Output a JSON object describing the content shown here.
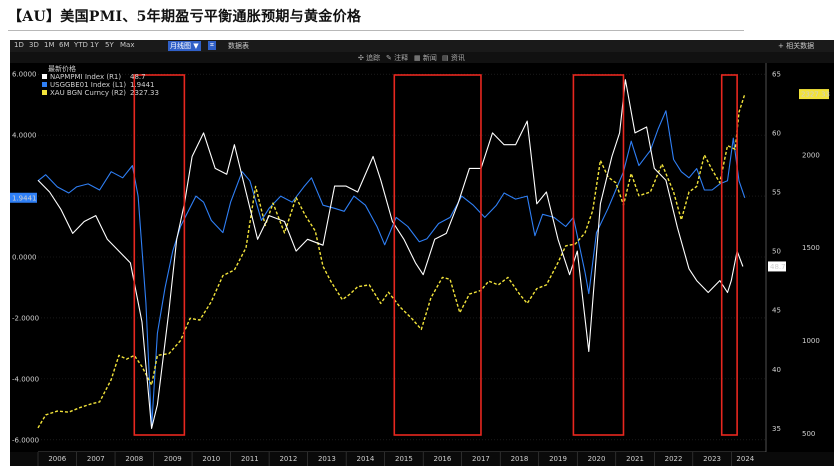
{
  "title": "【AU】美国PMI、5年期盈亏平衡通胀预期与黄金价格",
  "toolbar": {
    "ranges": [
      "1D",
      "3D",
      "1M",
      "6M",
      "YTD",
      "1Y",
      "5Y",
      "Max"
    ],
    "chart_type": "月线图 ▼",
    "table_label": "数据表",
    "right_action": "+ 相关数据",
    "secondary": [
      "✣ 追踪",
      "✎ 注释",
      "▦ 新闻",
      "▤ 资讯"
    ]
  },
  "legend": {
    "header": "最新价格",
    "items": [
      {
        "name": "NAPMPMI Index (R1)",
        "value": "48.7",
        "color": "#ffffff"
      },
      {
        "name": "USGGBE01 Index (L1)",
        "value": "1.9441",
        "color": "#2f7ff5"
      },
      {
        "name": "XAU BGN Curncy (R2)",
        "value": "2327.33",
        "color": "#f2e33a"
      }
    ]
  },
  "colors": {
    "pmi": "#ffffff",
    "breakeven": "#2f7ff5",
    "gold": "#f2e33a",
    "box": "#e8271f"
  },
  "chart_data": {
    "type": "line",
    "x_years": [
      "2006",
      "2007",
      "2008",
      "2009",
      "2010",
      "2011",
      "2012",
      "2013",
      "2014",
      "2015",
      "2016",
      "2017",
      "2018",
      "2019",
      "2020",
      "2021",
      "2022",
      "2023",
      "2024"
    ],
    "left_axis": {
      "ticks": [
        "6.0000",
        "4.0000",
        "2.0000",
        "0.0000",
        "-2.0000",
        "-4.0000",
        "-6.0000"
      ],
      "range": [
        -6.4,
        6.4
      ]
    },
    "right1_axis": {
      "ticks": [
        "65",
        "60",
        "55",
        "50",
        "45",
        "40",
        "35"
      ],
      "range": [
        33,
        66
      ]
    },
    "right2_axis": {
      "ticks": [
        "2000",
        "1500",
        "1000",
        "500"
      ],
      "range": [
        400,
        2500
      ]
    },
    "current_labels": {
      "breakeven": "1.9441",
      "pmi": "48.7",
      "gold": "2327.33"
    },
    "series": [
      {
        "name": "NAPMPMI Index (R1)",
        "axis": "r1",
        "points": [
          [
            2006.0,
            56
          ],
          [
            2006.3,
            55
          ],
          [
            2006.6,
            53.5
          ],
          [
            2006.9,
            51.5
          ],
          [
            2007.2,
            52.5
          ],
          [
            2007.5,
            53
          ],
          [
            2007.8,
            51
          ],
          [
            2008.1,
            50
          ],
          [
            2008.4,
            49
          ],
          [
            2008.7,
            44
          ],
          [
            2008.95,
            35
          ],
          [
            2009.1,
            37
          ],
          [
            2009.4,
            45
          ],
          [
            2009.6,
            51
          ],
          [
            2009.8,
            54
          ],
          [
            2010.0,
            58
          ],
          [
            2010.3,
            60
          ],
          [
            2010.6,
            57
          ],
          [
            2010.9,
            56.5
          ],
          [
            2011.1,
            59
          ],
          [
            2011.4,
            55
          ],
          [
            2011.7,
            51
          ],
          [
            2012.0,
            53
          ],
          [
            2012.4,
            52.5
          ],
          [
            2012.7,
            50
          ],
          [
            2013.0,
            51
          ],
          [
            2013.4,
            50.5
          ],
          [
            2013.7,
            55.5
          ],
          [
            2014.0,
            55.5
          ],
          [
            2014.3,
            55
          ],
          [
            2014.7,
            58
          ],
          [
            2014.9,
            56
          ],
          [
            2015.2,
            52.5
          ],
          [
            2015.5,
            51
          ],
          [
            2015.8,
            49
          ],
          [
            2016.0,
            48
          ],
          [
            2016.3,
            51
          ],
          [
            2016.6,
            51.5
          ],
          [
            2016.9,
            54
          ],
          [
            2017.2,
            57
          ],
          [
            2017.5,
            57
          ],
          [
            2017.8,
            60
          ],
          [
            2018.1,
            59
          ],
          [
            2018.4,
            59
          ],
          [
            2018.7,
            61
          ],
          [
            2018.95,
            54
          ],
          [
            2019.2,
            55
          ],
          [
            2019.5,
            51
          ],
          [
            2019.8,
            48
          ],
          [
            2020.0,
            50
          ],
          [
            2020.3,
            41.5
          ],
          [
            2020.6,
            54
          ],
          [
            2020.9,
            58
          ],
          [
            2021.1,
            60
          ],
          [
            2021.25,
            64.5
          ],
          [
            2021.5,
            60
          ],
          [
            2021.8,
            60.5
          ],
          [
            2022.0,
            57
          ],
          [
            2022.3,
            56
          ],
          [
            2022.6,
            52
          ],
          [
            2022.9,
            48.5
          ],
          [
            2023.1,
            47.5
          ],
          [
            2023.4,
            46.5
          ],
          [
            2023.7,
            47.5
          ],
          [
            2023.9,
            46.5
          ],
          [
            2024.0,
            47.5
          ],
          [
            2024.15,
            50
          ],
          [
            2024.3,
            48.7
          ]
        ]
      },
      {
        "name": "USGGBE01 Index (L1)",
        "axis": "l1",
        "points": [
          [
            2006.0,
            2.5
          ],
          [
            2006.2,
            2.7
          ],
          [
            2006.5,
            2.3
          ],
          [
            2006.8,
            2.1
          ],
          [
            2007.0,
            2.3
          ],
          [
            2007.3,
            2.4
          ],
          [
            2007.6,
            2.2
          ],
          [
            2007.9,
            2.8
          ],
          [
            2008.2,
            2.6
          ],
          [
            2008.45,
            3.0
          ],
          [
            2008.6,
            2.0
          ],
          [
            2008.8,
            -1.5
          ],
          [
            2008.95,
            -5.6
          ],
          [
            2009.1,
            -2.5
          ],
          [
            2009.3,
            -1.0
          ],
          [
            2009.5,
            0.2
          ],
          [
            2009.7,
            1.0
          ],
          [
            2009.9,
            1.5
          ],
          [
            2010.1,
            2.0
          ],
          [
            2010.3,
            1.8
          ],
          [
            2010.5,
            1.2
          ],
          [
            2010.8,
            0.8
          ],
          [
            2011.0,
            1.8
          ],
          [
            2011.3,
            2.8
          ],
          [
            2011.5,
            2.5
          ],
          [
            2011.8,
            1.2
          ],
          [
            2012.0,
            1.6
          ],
          [
            2012.3,
            2.0
          ],
          [
            2012.6,
            1.8
          ],
          [
            2012.9,
            2.3
          ],
          [
            2013.1,
            2.6
          ],
          [
            2013.4,
            1.7
          ],
          [
            2013.7,
            1.6
          ],
          [
            2013.95,
            1.5
          ],
          [
            2014.2,
            2.0
          ],
          [
            2014.5,
            1.7
          ],
          [
            2014.8,
            1.0
          ],
          [
            2015.0,
            0.4
          ],
          [
            2015.3,
            1.3
          ],
          [
            2015.6,
            1.0
          ],
          [
            2015.9,
            0.5
          ],
          [
            2016.1,
            0.6
          ],
          [
            2016.4,
            1.1
          ],
          [
            2016.7,
            1.3
          ],
          [
            2017.0,
            2.0
          ],
          [
            2017.3,
            1.7
          ],
          [
            2017.6,
            1.3
          ],
          [
            2017.9,
            1.7
          ],
          [
            2018.1,
            2.1
          ],
          [
            2018.4,
            1.9
          ],
          [
            2018.7,
            2.0
          ],
          [
            2018.9,
            0.7
          ],
          [
            2019.1,
            1.4
          ],
          [
            2019.4,
            1.3
          ],
          [
            2019.7,
            1.0
          ],
          [
            2019.9,
            1.3
          ],
          [
            2020.2,
            -0.5
          ],
          [
            2020.3,
            -1.2
          ],
          [
            2020.5,
            0.8
          ],
          [
            2020.8,
            1.6
          ],
          [
            2021.0,
            2.2
          ],
          [
            2021.2,
            2.8
          ],
          [
            2021.4,
            3.8
          ],
          [
            2021.6,
            3.0
          ],
          [
            2021.9,
            3.5
          ],
          [
            2022.1,
            4.2
          ],
          [
            2022.3,
            4.8
          ],
          [
            2022.5,
            3.2
          ],
          [
            2022.7,
            2.8
          ],
          [
            2022.9,
            2.6
          ],
          [
            2023.1,
            2.9
          ],
          [
            2023.3,
            2.2
          ],
          [
            2023.5,
            2.2
          ],
          [
            2023.7,
            2.4
          ],
          [
            2023.9,
            2.5
          ],
          [
            2024.05,
            3.9
          ],
          [
            2024.2,
            2.5
          ],
          [
            2024.35,
            1.9441
          ]
        ]
      },
      {
        "name": "XAU BGN Curncy (R2)",
        "axis": "r2",
        "points": [
          [
            2006.0,
            530
          ],
          [
            2006.2,
            600
          ],
          [
            2006.5,
            620
          ],
          [
            2006.8,
            615
          ],
          [
            2007.1,
            640
          ],
          [
            2007.4,
            660
          ],
          [
            2007.6,
            670
          ],
          [
            2007.9,
            790
          ],
          [
            2008.1,
            920
          ],
          [
            2008.3,
            900
          ],
          [
            2008.5,
            920
          ],
          [
            2008.7,
            860
          ],
          [
            2008.95,
            760
          ],
          [
            2009.1,
            920
          ],
          [
            2009.4,
            930
          ],
          [
            2009.7,
            1000
          ],
          [
            2009.95,
            1120
          ],
          [
            2010.2,
            1110
          ],
          [
            2010.5,
            1210
          ],
          [
            2010.8,
            1350
          ],
          [
            2011.1,
            1380
          ],
          [
            2011.4,
            1500
          ],
          [
            2011.65,
            1830
          ],
          [
            2011.9,
            1620
          ],
          [
            2012.1,
            1740
          ],
          [
            2012.4,
            1580
          ],
          [
            2012.7,
            1770
          ],
          [
            2012.95,
            1670
          ],
          [
            2013.2,
            1590
          ],
          [
            2013.4,
            1400
          ],
          [
            2013.6,
            1320
          ],
          [
            2013.9,
            1220
          ],
          [
            2014.1,
            1250
          ],
          [
            2014.3,
            1290
          ],
          [
            2014.6,
            1300
          ],
          [
            2014.9,
            1200
          ],
          [
            2015.1,
            1260
          ],
          [
            2015.4,
            1180
          ],
          [
            2015.7,
            1120
          ],
          [
            2015.95,
            1060
          ],
          [
            2016.2,
            1230
          ],
          [
            2016.5,
            1340
          ],
          [
            2016.7,
            1330
          ],
          [
            2016.95,
            1150
          ],
          [
            2017.2,
            1250
          ],
          [
            2017.5,
            1270
          ],
          [
            2017.7,
            1320
          ],
          [
            2017.95,
            1300
          ],
          [
            2018.2,
            1340
          ],
          [
            2018.5,
            1250
          ],
          [
            2018.7,
            1200
          ],
          [
            2018.95,
            1280
          ],
          [
            2019.2,
            1300
          ],
          [
            2019.5,
            1420
          ],
          [
            2019.7,
            1510
          ],
          [
            2019.95,
            1520
          ],
          [
            2020.2,
            1580
          ],
          [
            2020.4,
            1700
          ],
          [
            2020.6,
            1970
          ],
          [
            2020.8,
            1880
          ],
          [
            2021.0,
            1850
          ],
          [
            2021.2,
            1730
          ],
          [
            2021.4,
            1900
          ],
          [
            2021.6,
            1780
          ],
          [
            2021.9,
            1800
          ],
          [
            2022.1,
            1900
          ],
          [
            2022.2,
            1950
          ],
          [
            2022.5,
            1800
          ],
          [
            2022.7,
            1650
          ],
          [
            2022.9,
            1800
          ],
          [
            2023.1,
            1830
          ],
          [
            2023.3,
            2000
          ],
          [
            2023.5,
            1920
          ],
          [
            2023.7,
            1850
          ],
          [
            2023.9,
            2050
          ],
          [
            2024.1,
            2030
          ],
          [
            2024.2,
            2230
          ],
          [
            2024.35,
            2327.33
          ]
        ]
      }
    ],
    "highlight_boxes": [
      [
        2008.5,
        2009.8
      ],
      [
        2015.25,
        2017.5
      ],
      [
        2019.9,
        2021.2
      ],
      [
        2023.75,
        2024.15
      ]
    ]
  }
}
